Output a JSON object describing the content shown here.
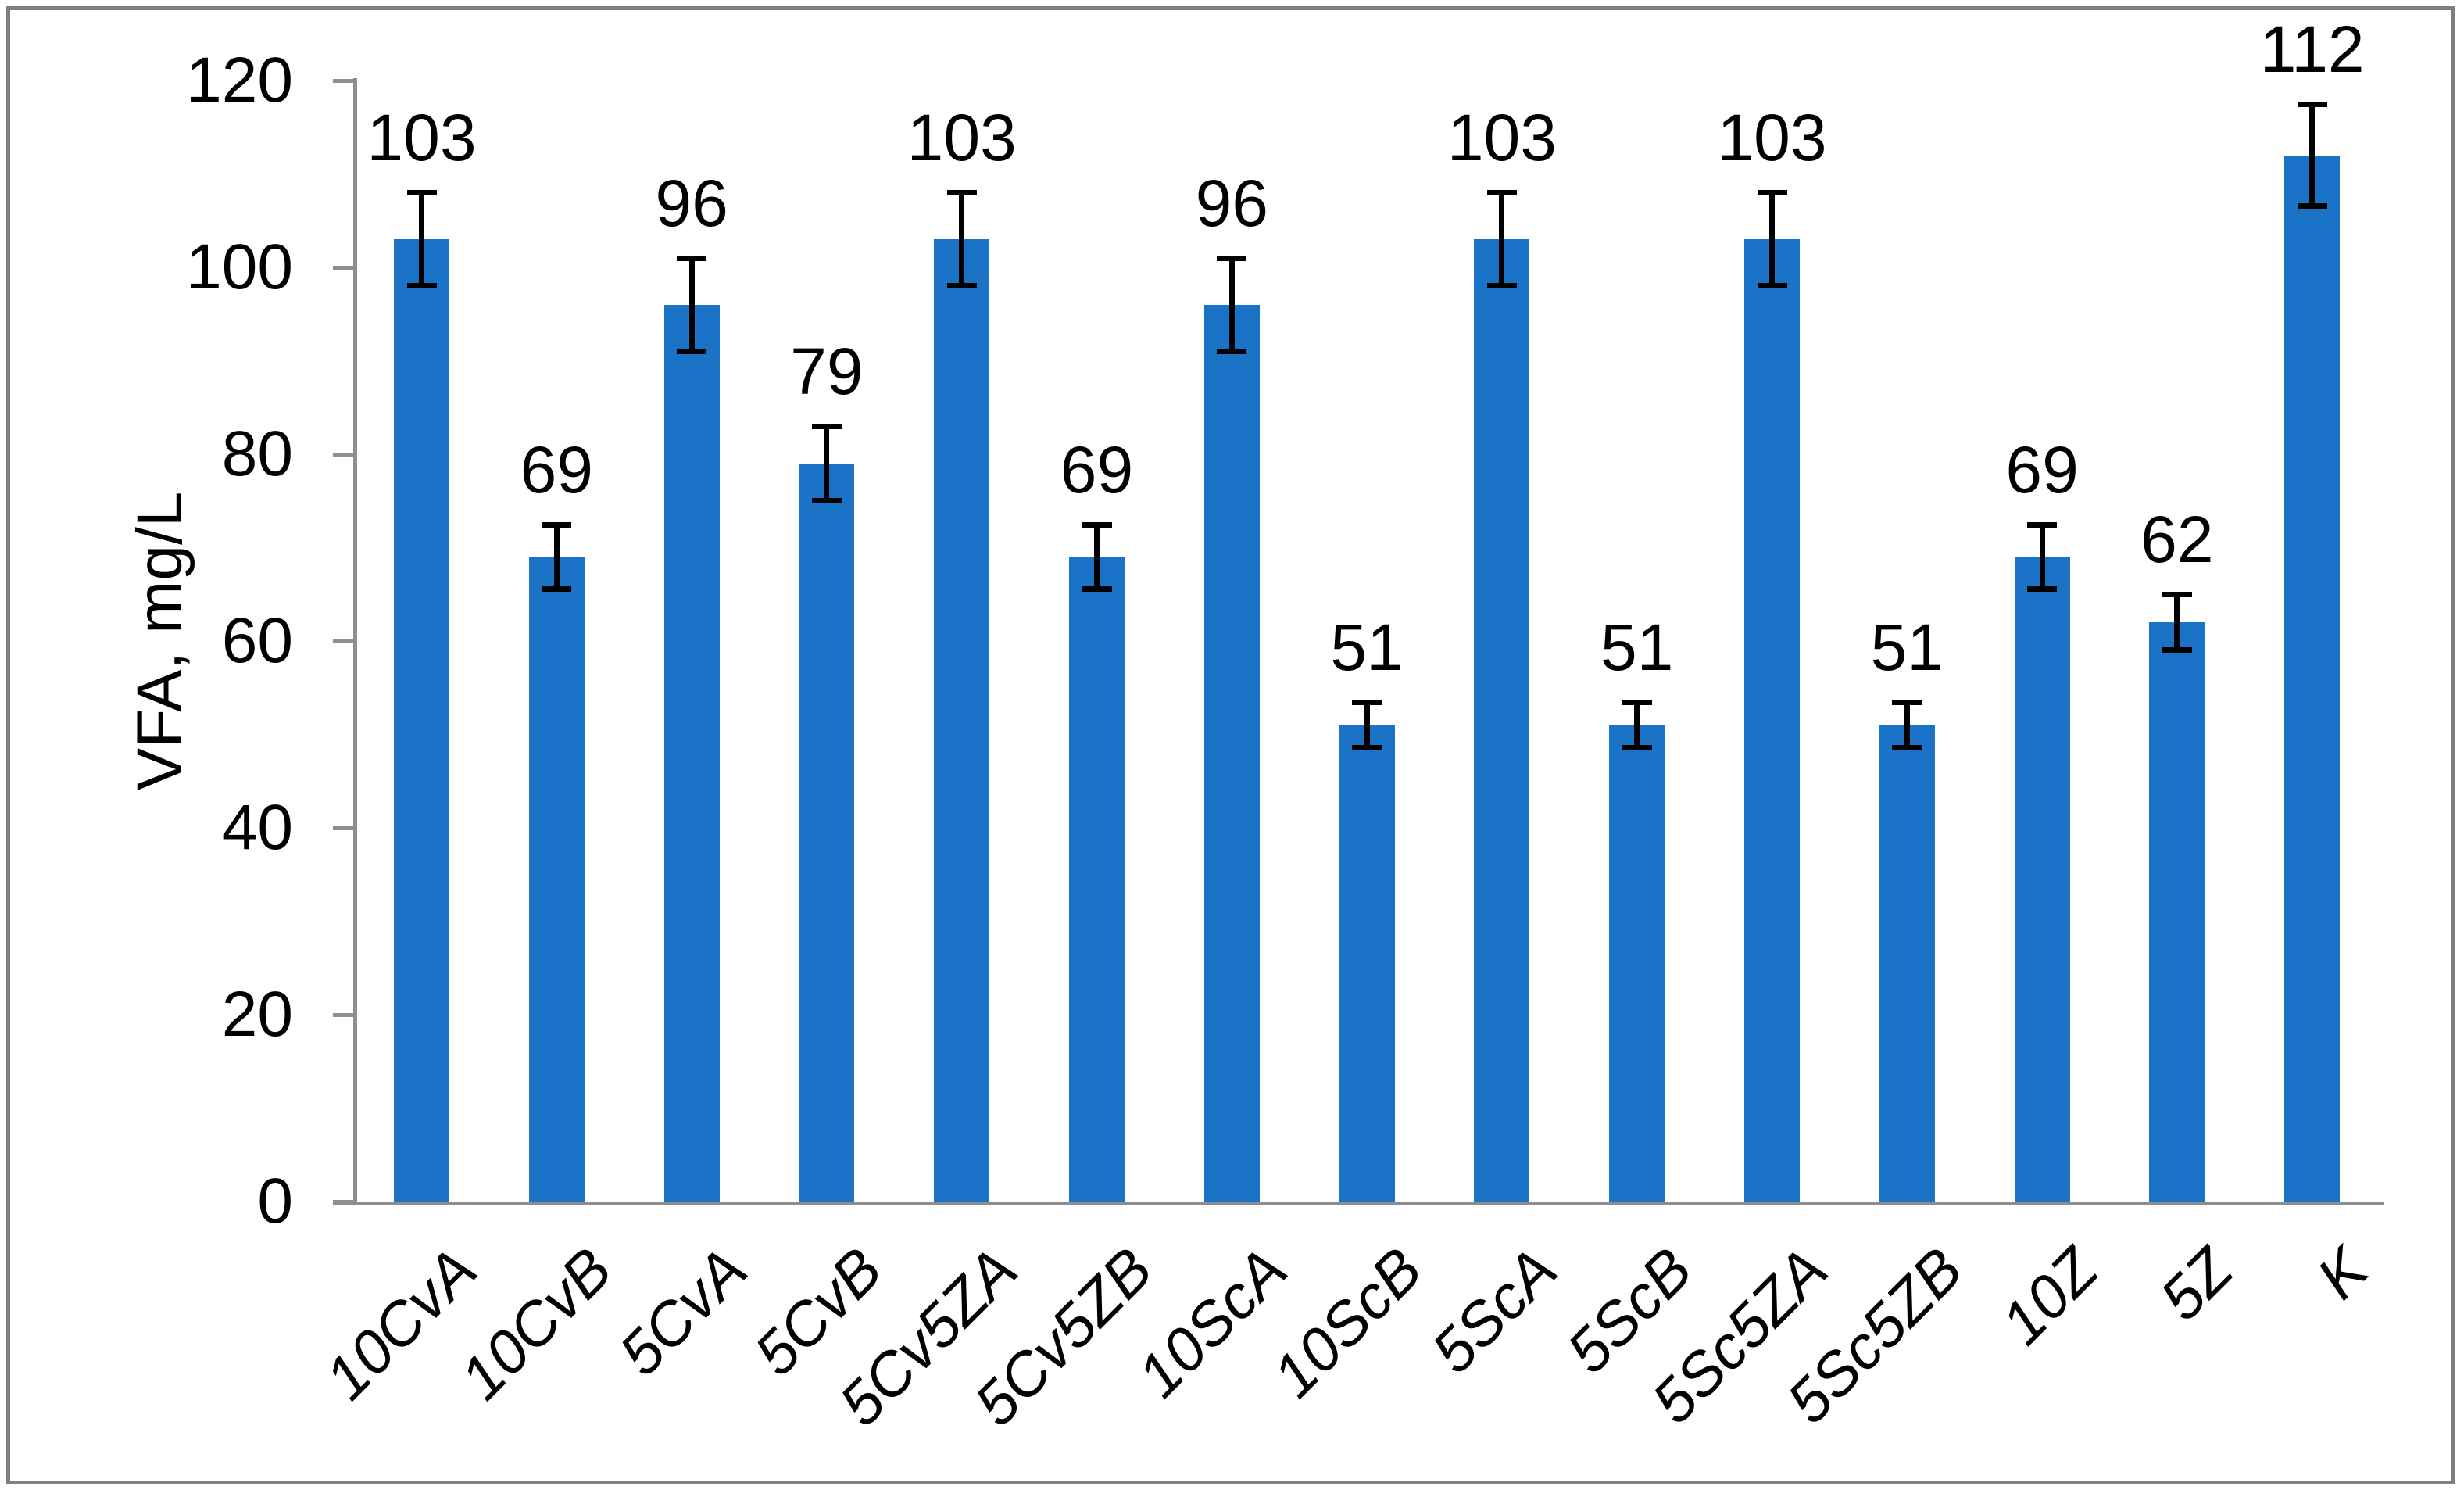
{
  "page": {
    "background": "#FFFFFF",
    "border_color": "#7F7F7F"
  },
  "chart_data": {
    "type": "bar",
    "title": "",
    "ylabel": "VFA, mg/L",
    "xlabel": "",
    "categories": [
      "10CvA",
      "10CvB",
      "5CvA",
      "5CvB",
      "5Cv5ZA",
      "5Cv5ZB",
      "10ScA",
      "10ScB",
      "5ScA",
      "5ScB",
      "5Sc5ZA",
      "5Sc5ZB",
      "10Z",
      "5Z",
      "K"
    ],
    "values": [
      103,
      69,
      96,
      79,
      103,
      69,
      96,
      51,
      103,
      51,
      103,
      51,
      69,
      62,
      112
    ],
    "errors": [
      5,
      3.5,
      5,
      4,
      5,
      3.5,
      5,
      2.5,
      5,
      2.5,
      5,
      2.5,
      3.5,
      3,
      5.5
    ],
    "data_labels": [
      "103",
      "69",
      "96",
      "79",
      "103",
      "69",
      "96",
      "51",
      "103",
      "51",
      "103",
      "51",
      "69",
      "62",
      "112"
    ],
    "yticks": [
      0,
      20,
      40,
      60,
      80,
      100,
      120
    ],
    "ylim": [
      0,
      120
    ],
    "grid": false,
    "legend": false,
    "error_bars": true,
    "bar_color": "#1A73C6",
    "axis_color": "#8E8E8E",
    "error_color": "#000000",
    "label_color": "#000000"
  }
}
